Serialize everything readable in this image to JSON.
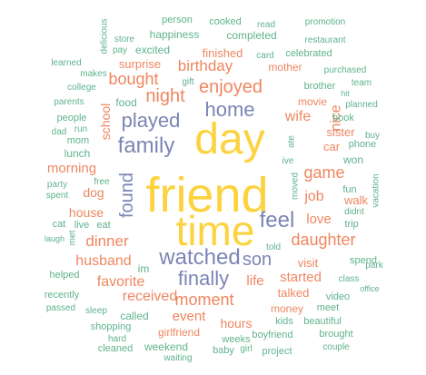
{
  "chart_data": {
    "type": "wordcloud",
    "title": "",
    "colors": {
      "yellow": "#fcd33f",
      "blue": "#7b85b5",
      "orange": "#ef8660",
      "green": "#5fb38d"
    },
    "words": [
      {
        "text": "friend",
        "color": "yellow"
      },
      {
        "text": "time",
        "color": "yellow"
      },
      {
        "text": "day",
        "color": "yellow"
      },
      {
        "text": "watched",
        "color": "blue"
      },
      {
        "text": "family",
        "color": "blue"
      },
      {
        "text": "played",
        "color": "blue"
      },
      {
        "text": "home",
        "color": "blue"
      },
      {
        "text": "feel",
        "color": "blue"
      },
      {
        "text": "finally",
        "color": "blue"
      },
      {
        "text": "found",
        "color": "blue"
      },
      {
        "text": "son",
        "color": "blue"
      },
      {
        "text": "enjoyed",
        "color": "orange"
      },
      {
        "text": "night",
        "color": "orange"
      },
      {
        "text": "bought",
        "color": "orange"
      },
      {
        "text": "birthday",
        "color": "orange"
      },
      {
        "text": "game",
        "color": "orange"
      },
      {
        "text": "daughter",
        "color": "orange"
      },
      {
        "text": "dinner",
        "color": "orange"
      },
      {
        "text": "moment",
        "color": "orange"
      },
      {
        "text": "husband",
        "color": "orange"
      },
      {
        "text": "favorite",
        "color": "orange"
      },
      {
        "text": "received",
        "color": "orange"
      },
      {
        "text": "morning",
        "color": "orange"
      },
      {
        "text": "school",
        "color": "orange"
      },
      {
        "text": "wife",
        "color": "orange"
      },
      {
        "text": "nice",
        "color": "orange"
      },
      {
        "text": "job",
        "color": "orange"
      },
      {
        "text": "love",
        "color": "orange"
      },
      {
        "text": "life",
        "color": "orange"
      },
      {
        "text": "started",
        "color": "orange"
      },
      {
        "text": "event",
        "color": "orange"
      },
      {
        "text": "hours",
        "color": "orange"
      },
      {
        "text": "dog",
        "color": "orange"
      },
      {
        "text": "house",
        "color": "orange"
      },
      {
        "text": "surprise",
        "color": "orange"
      },
      {
        "text": "finished",
        "color": "orange"
      },
      {
        "text": "car",
        "color": "orange"
      },
      {
        "text": "sister",
        "color": "orange"
      },
      {
        "text": "walk",
        "color": "orange"
      },
      {
        "text": "visit",
        "color": "orange"
      },
      {
        "text": "talked",
        "color": "orange"
      },
      {
        "text": "girlfriend",
        "color": "orange"
      },
      {
        "text": "money",
        "color": "orange"
      },
      {
        "text": "movie",
        "color": "orange"
      },
      {
        "text": "mother",
        "color": "orange"
      },
      {
        "text": "lunch",
        "color": "green"
      },
      {
        "text": "called",
        "color": "green"
      },
      {
        "text": "weekend",
        "color": "green"
      },
      {
        "text": "im",
        "color": "green"
      },
      {
        "text": "happiness",
        "color": "green"
      },
      {
        "text": "completed",
        "color": "green"
      },
      {
        "text": "excited",
        "color": "green"
      },
      {
        "text": "cooked",
        "color": "green"
      },
      {
        "text": "person",
        "color": "green"
      },
      {
        "text": "read",
        "color": "green"
      },
      {
        "text": "promotion",
        "color": "green"
      },
      {
        "text": "restaurant",
        "color": "green"
      },
      {
        "text": "celebrated",
        "color": "green"
      },
      {
        "text": "store",
        "color": "green"
      },
      {
        "text": "delicious",
        "color": "green"
      },
      {
        "text": "pay",
        "color": "green"
      },
      {
        "text": "card",
        "color": "green"
      },
      {
        "text": "learned",
        "color": "green"
      },
      {
        "text": "makes",
        "color": "green"
      },
      {
        "text": "college",
        "color": "green"
      },
      {
        "text": "gift",
        "color": "green"
      },
      {
        "text": "purchased",
        "color": "green"
      },
      {
        "text": "team",
        "color": "green"
      },
      {
        "text": "brother",
        "color": "green"
      },
      {
        "text": "hit",
        "color": "green"
      },
      {
        "text": "planned",
        "color": "green"
      },
      {
        "text": "parents",
        "color": "green"
      },
      {
        "text": "food",
        "color": "green"
      },
      {
        "text": "book",
        "color": "green"
      },
      {
        "text": "people",
        "color": "green"
      },
      {
        "text": "run",
        "color": "green"
      },
      {
        "text": "dad",
        "color": "green"
      },
      {
        "text": "buy",
        "color": "green"
      },
      {
        "text": "mom",
        "color": "green"
      },
      {
        "text": "ate",
        "color": "green"
      },
      {
        "text": "phone",
        "color": "green"
      },
      {
        "text": "ive",
        "color": "green"
      },
      {
        "text": "won",
        "color": "green"
      },
      {
        "text": "party",
        "color": "green"
      },
      {
        "text": "free",
        "color": "green"
      },
      {
        "text": "spent",
        "color": "green"
      },
      {
        "text": "fun",
        "color": "green"
      },
      {
        "text": "moved",
        "color": "green"
      },
      {
        "text": "didnt",
        "color": "green"
      },
      {
        "text": "cat",
        "color": "green"
      },
      {
        "text": "live",
        "color": "green"
      },
      {
        "text": "eat",
        "color": "green"
      },
      {
        "text": "trip",
        "color": "green"
      },
      {
        "text": "vacation",
        "color": "green"
      },
      {
        "text": "laugh",
        "color": "green"
      },
      {
        "text": "met",
        "color": "green"
      },
      {
        "text": "told",
        "color": "green"
      },
      {
        "text": "spend",
        "color": "green"
      },
      {
        "text": "helped",
        "color": "green"
      },
      {
        "text": "park",
        "color": "green"
      },
      {
        "text": "class",
        "color": "green"
      },
      {
        "text": "office",
        "color": "green"
      },
      {
        "text": "recently",
        "color": "green"
      },
      {
        "text": "video",
        "color": "green"
      },
      {
        "text": "passed",
        "color": "green"
      },
      {
        "text": "sleep",
        "color": "green"
      },
      {
        "text": "waiting",
        "color": "green"
      },
      {
        "text": "meet",
        "color": "green"
      },
      {
        "text": "kids",
        "color": "green"
      },
      {
        "text": "beautiful",
        "color": "green"
      },
      {
        "text": "shopping",
        "color": "green"
      },
      {
        "text": "hard",
        "color": "green"
      },
      {
        "text": "boyfriend",
        "color": "green"
      },
      {
        "text": "brought",
        "color": "green"
      },
      {
        "text": "weeks",
        "color": "green"
      },
      {
        "text": "cleaned",
        "color": "green"
      },
      {
        "text": "baby",
        "color": "green"
      },
      {
        "text": "girl",
        "color": "green"
      },
      {
        "text": "project",
        "color": "green"
      },
      {
        "text": "couple",
        "color": "green"
      }
    ]
  }
}
